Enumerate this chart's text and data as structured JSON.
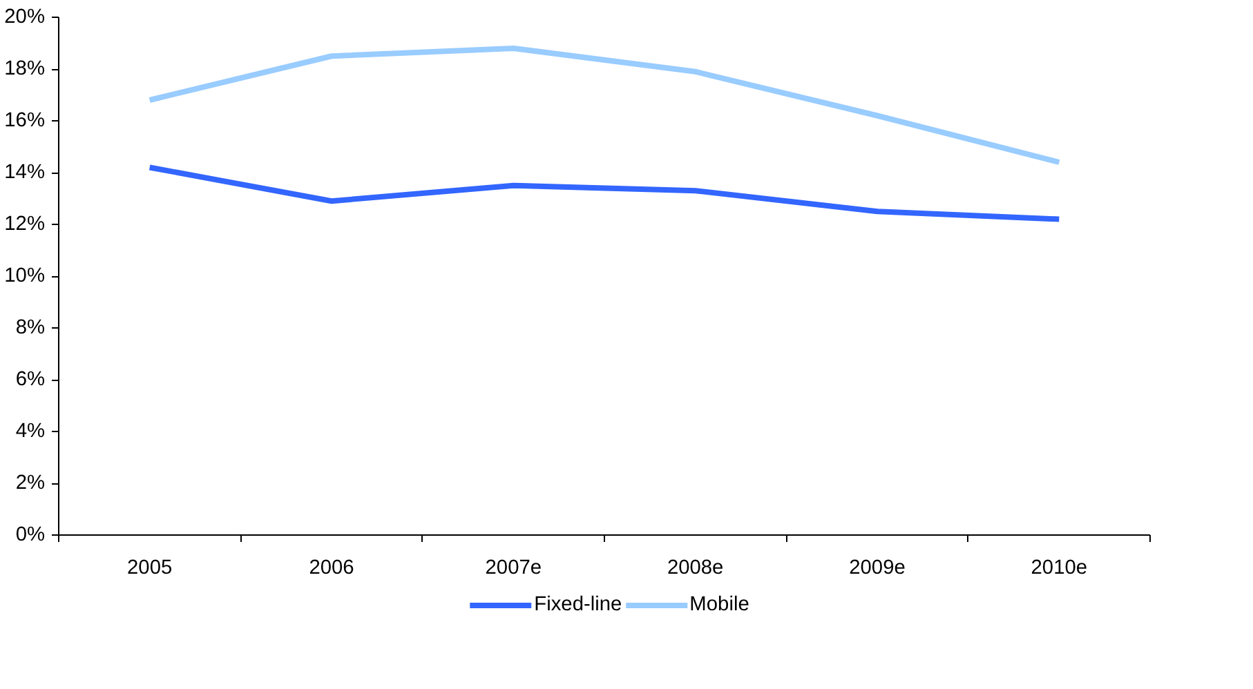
{
  "chart_data": {
    "type": "line",
    "categories": [
      "2005",
      "2006",
      "2007e",
      "2008e",
      "2009e",
      "2010e"
    ],
    "series": [
      {
        "name": "Fixed-line",
        "color": "#3366ff",
        "values": [
          14.2,
          12.9,
          13.5,
          13.3,
          12.5,
          12.2
        ]
      },
      {
        "name": "Mobile",
        "color": "#99ccff",
        "values": [
          16.8,
          18.5,
          18.8,
          17.9,
          16.2,
          14.4
        ]
      }
    ],
    "ylim": [
      0,
      20
    ],
    "yticks": [
      {
        "value": 0,
        "label": "0%"
      },
      {
        "value": 2,
        "label": "2%"
      },
      {
        "value": 4,
        "label": "4%"
      },
      {
        "value": 6,
        "label": "6%"
      },
      {
        "value": 8,
        "label": "8%"
      },
      {
        "value": 10,
        "label": "10%"
      },
      {
        "value": 12,
        "label": "12%"
      },
      {
        "value": 14,
        "label": "14%"
      },
      {
        "value": 16,
        "label": "16%"
      },
      {
        "value": 18,
        "label": "18%"
      },
      {
        "value": 20,
        "label": "20%"
      }
    ],
    "grid": false,
    "legend": "bottom",
    "marker": "none",
    "line_style": "solid"
  }
}
